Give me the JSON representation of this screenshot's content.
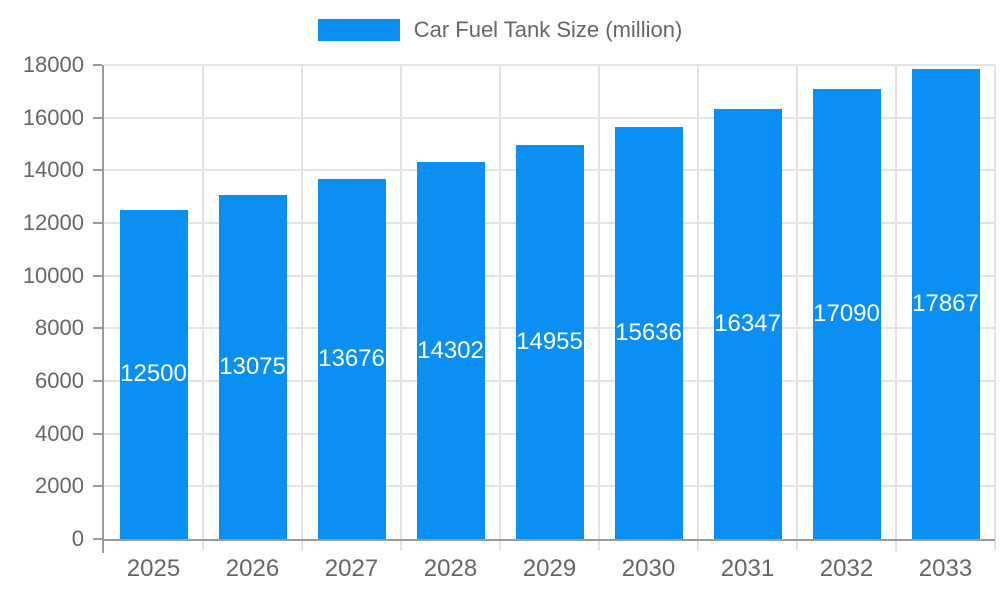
{
  "chart": {
    "legend": {
      "label": "Car Fuel Tank Size (million)"
    },
    "colors": {
      "bar": "#0a90f5",
      "axis": "#9a9a9a",
      "grid": "#e3e3e3",
      "tick_text": "#666666",
      "bar_label_text": "#ffffff"
    }
  },
  "chart_data": {
    "type": "bar",
    "title": "Car Fuel Tank Size (million)",
    "categories": [
      "2025",
      "2026",
      "2027",
      "2028",
      "2029",
      "2030",
      "2031",
      "2032",
      "2033"
    ],
    "values": [
      12500,
      13075,
      13676,
      14302,
      14955,
      15636,
      16347,
      17090,
      17867
    ],
    "xlabel": "",
    "ylabel": "",
    "ylim": [
      0,
      18000
    ],
    "ytick_step": 2000,
    "ytick_labels": [
      "0",
      "2000",
      "4000",
      "6000",
      "8000",
      "10000",
      "12000",
      "14000",
      "16000",
      "18000"
    ],
    "grid": true,
    "legend_position": "top-center",
    "bar_value_labels": "inside-center-white"
  }
}
